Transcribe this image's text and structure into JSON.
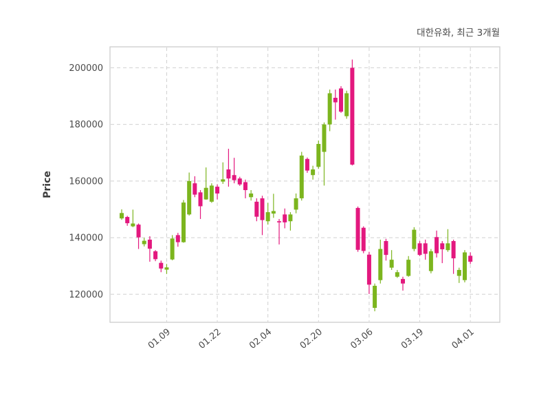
{
  "header": {
    "title": "대한유화, 최근 3개월"
  },
  "chart_data": {
    "type": "candlestick",
    "title": "대한유화, 최근 3개월",
    "ylabel": "Price",
    "grid": "dashed-both",
    "legend": "none",
    "ylim": [
      110100,
      207400
    ],
    "yticks": [
      120000,
      140000,
      160000,
      180000,
      200000
    ],
    "xticks": [
      {
        "index": 8,
        "label": "01.09"
      },
      {
        "index": 17,
        "label": "01.22"
      },
      {
        "index": 26,
        "label": "02.04"
      },
      {
        "index": 35,
        "label": "02.20"
      },
      {
        "index": 44,
        "label": "03.06"
      },
      {
        "index": 53,
        "label": "03.19"
      },
      {
        "index": 62,
        "label": "04.01"
      }
    ],
    "colors": {
      "up": "#7CB51E",
      "down": "#E3187E"
    },
    "ohlc": [
      [
        146800,
        150000,
        146300,
        148700
      ],
      [
        147300,
        147700,
        144200,
        145100
      ],
      [
        144000,
        149900,
        143700,
        145000
      ],
      [
        144600,
        145000,
        136000,
        140100
      ],
      [
        137700,
        139900,
        136900,
        138900
      ],
      [
        139300,
        140500,
        131500,
        136100
      ],
      [
        135200,
        135600,
        131700,
        132400
      ],
      [
        131100,
        131900,
        127800,
        129100
      ],
      [
        128700,
        130700,
        127200,
        129500
      ],
      [
        132300,
        140900,
        132000,
        139700
      ],
      [
        140900,
        141700,
        136800,
        138400
      ],
      [
        138400,
        153300,
        138200,
        152400
      ],
      [
        148200,
        163000,
        147800,
        160000
      ],
      [
        159200,
        161700,
        154300,
        155200
      ],
      [
        156000,
        156800,
        146600,
        151100
      ],
      [
        153500,
        164800,
        153400,
        157600
      ],
      [
        152700,
        159200,
        152300,
        158400
      ],
      [
        158000,
        158800,
        153500,
        155600
      ],
      [
        159800,
        166600,
        159000,
        160600
      ],
      [
        164100,
        171400,
        158000,
        160900
      ],
      [
        162100,
        168200,
        159200,
        160300
      ],
      [
        160900,
        161500,
        158300,
        158800
      ],
      [
        159600,
        160500,
        153900,
        156800
      ],
      [
        154300,
        156800,
        153100,
        155600
      ],
      [
        152700,
        153900,
        145800,
        147400
      ],
      [
        153900,
        154800,
        140900,
        146200
      ],
      [
        145800,
        152300,
        144600,
        149000
      ],
      [
        148500,
        155500,
        147000,
        149400
      ],
      [
        145800,
        146600,
        137600,
        145400
      ],
      [
        148200,
        150300,
        143300,
        145400
      ],
      [
        145800,
        149000,
        142500,
        148200
      ],
      [
        149900,
        155600,
        148600,
        153900
      ],
      [
        153900,
        170300,
        153100,
        169000
      ],
      [
        167800,
        168300,
        162900,
        163700
      ],
      [
        162100,
        165400,
        160500,
        164100
      ],
      [
        165000,
        174300,
        164300,
        173100
      ],
      [
        170300,
        180700,
        158400,
        180000
      ],
      [
        180000,
        192300,
        177600,
        191000
      ],
      [
        189400,
        192300,
        181700,
        187800
      ],
      [
        192700,
        193500,
        184100,
        184500
      ],
      [
        182900,
        191900,
        182000,
        191000
      ],
      [
        200000,
        202900,
        165500,
        165800
      ],
      [
        150500,
        151000,
        135000,
        135700
      ],
      [
        143500,
        144000,
        134500,
        135300
      ],
      [
        134000,
        135000,
        120100,
        123400
      ],
      [
        115200,
        123800,
        114000,
        123000
      ],
      [
        125000,
        139300,
        123800,
        136000
      ],
      [
        138800,
        139600,
        131900,
        133900
      ],
      [
        129400,
        135600,
        128600,
        132200
      ],
      [
        126200,
        128600,
        125800,
        127800
      ],
      [
        125400,
        126200,
        121300,
        123800
      ],
      [
        126500,
        133500,
        126200,
        132200
      ],
      [
        136000,
        143700,
        135200,
        142800
      ],
      [
        138000,
        138800,
        133500,
        133900
      ],
      [
        138000,
        139300,
        132200,
        134300
      ],
      [
        128200,
        136000,
        127400,
        135200
      ],
      [
        140200,
        142500,
        133000,
        134500
      ],
      [
        138000,
        138800,
        131000,
        135900
      ],
      [
        135600,
        143000,
        135000,
        138000
      ],
      [
        138800,
        139300,
        127200,
        132700
      ],
      [
        126500,
        129400,
        124000,
        128600
      ],
      [
        125000,
        135600,
        124200,
        134800
      ],
      [
        133600,
        134800,
        130700,
        131500
      ]
    ]
  }
}
